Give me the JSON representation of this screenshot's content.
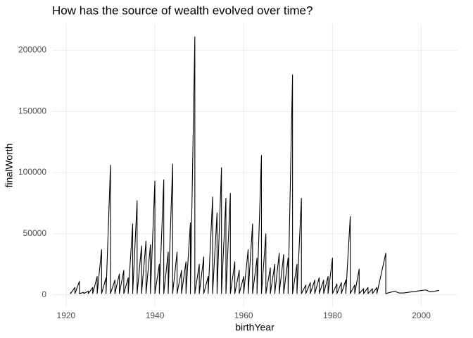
{
  "chart_data": {
    "type": "line",
    "title": "How has the source of wealth evolved over time?",
    "x_label": "birthYear",
    "y_label": "finalWorth",
    "x": [
      1921,
      1921,
      1922,
      1922,
      1923,
      1923,
      1924,
      1924,
      1925,
      1925,
      1926,
      1926,
      1927,
      1927,
      1928,
      1928,
      1929,
      1929,
      1930,
      1930,
      1931,
      1931,
      1932,
      1932,
      1933,
      1933,
      1934,
      1934,
      1935,
      1935,
      1936,
      1936,
      1937,
      1937,
      1938,
      1938,
      1939,
      1939,
      1940,
      1940,
      1941,
      1941,
      1942,
      1942,
      1943,
      1943,
      1944,
      1944,
      1945,
      1945,
      1946,
      1946,
      1947,
      1947,
      1948,
      1948,
      1949,
      1949,
      1950,
      1950,
      1951,
      1951,
      1952,
      1952,
      1953,
      1953,
      1954,
      1954,
      1955,
      1955,
      1956,
      1956,
      1957,
      1957,
      1958,
      1958,
      1959,
      1959,
      1960,
      1960,
      1961,
      1961,
      1962,
      1962,
      1963,
      1963,
      1964,
      1964,
      1965,
      1965,
      1966,
      1966,
      1967,
      1967,
      1968,
      1968,
      1969,
      1969,
      1970,
      1970,
      1971,
      1971,
      1972,
      1972,
      1973,
      1973,
      1974,
      1974,
      1975,
      1975,
      1976,
      1976,
      1977,
      1977,
      1978,
      1978,
      1979,
      1979,
      1980,
      1980,
      1981,
      1981,
      1982,
      1982,
      1983,
      1983,
      1984,
      1984,
      1985,
      1985,
      1986,
      1986,
      1987,
      1987,
      1988,
      1988,
      1989,
      1989,
      1990,
      1990,
      1992,
      1992,
      1993,
      1994,
      1995,
      1996,
      1997,
      1998,
      1999,
      2000,
      2001,
      2002,
      2003,
      2004
    ],
    "y": [
      2000,
      1000,
      6000,
      1000,
      11000,
      1000,
      2000,
      1000,
      3000,
      1000,
      6000,
      1000,
      15000,
      1000,
      37000,
      1000,
      14000,
      1000,
      106000,
      1000,
      12000,
      1000,
      17000,
      1000,
      20000,
      1000,
      14000,
      1000,
      58000,
      1000,
      77000,
      1000,
      40000,
      1000,
      44000,
      1000,
      41000,
      1000,
      93000,
      1000,
      25000,
      1000,
      94000,
      1000,
      35000,
      1000,
      107000,
      1000,
      35000,
      1000,
      20000,
      1000,
      27000,
      1000,
      59000,
      1000,
      211000,
      1000,
      25000,
      1000,
      31000,
      1000,
      15000,
      1000,
      80000,
      1000,
      67000,
      1000,
      104000,
      1000,
      79000,
      1000,
      83000,
      1000,
      27000,
      1000,
      20000,
      1000,
      15000,
      1000,
      37000,
      1000,
      58000,
      1000,
      30000,
      1000,
      114000,
      1000,
      50000,
      1000,
      22000,
      1000,
      25000,
      1000,
      34000,
      1000,
      33000,
      1000,
      30000,
      1000,
      180000,
      1000,
      25000,
      1000,
      79000,
      1000,
      8000,
      1000,
      10000,
      1000,
      12000,
      1000,
      14000,
      1000,
      12000,
      1000,
      15000,
      1000,
      30000,
      1000,
      9000,
      1000,
      10000,
      1000,
      12000,
      1000,
      64000,
      1000,
      8000,
      1000,
      21000,
      1000,
      5000,
      1000,
      6000,
      1000,
      5000,
      1000,
      6000,
      1000,
      34000,
      1000,
      2000,
      3000,
      1500,
      1500,
      2000,
      2500,
      3000,
      3500,
      4000,
      2500,
      3000,
      3500
    ],
    "color": "#000000",
    "xlim": [
      1916.85,
      2008.15
    ],
    "xticks": [
      1920,
      1940,
      1960,
      1980,
      2000
    ],
    "ylim": [
      -10550,
      221550
    ],
    "yticks": [
      0,
      50000,
      100000,
      150000,
      200000
    ],
    "grid": true
  }
}
